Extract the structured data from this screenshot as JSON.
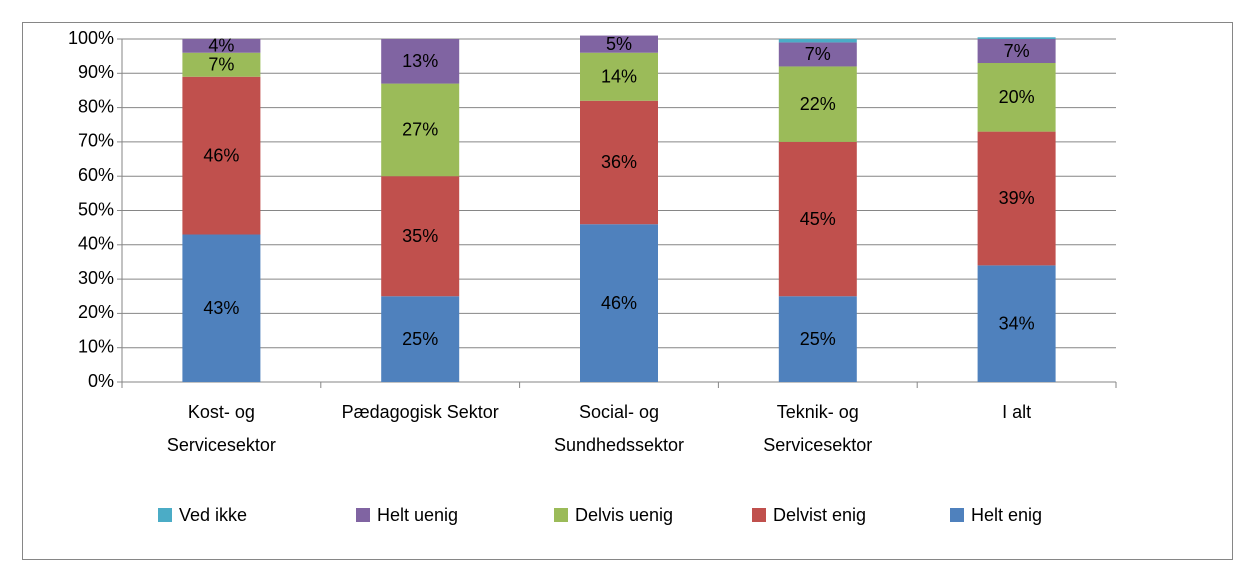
{
  "chart_data": {
    "type": "stacked_bar",
    "categories": [
      "Kost- og Servicesektor",
      "Pædagogisk Sektor",
      "Social- og Sundhedssektor",
      "Teknik- og Servicesektor",
      "I alt"
    ],
    "series": [
      {
        "name": "Helt enig",
        "color": "#4f81bd",
        "values": [
          43,
          25,
          46,
          25,
          34
        ],
        "value_labels": [
          "43%",
          "25%",
          "46%",
          "25%",
          "34%"
        ]
      },
      {
        "name": "Delvist enig",
        "color": "#c0504d",
        "values": [
          46,
          35,
          36,
          45,
          39
        ],
        "value_labels": [
          "46%",
          "35%",
          "36%",
          "45%",
          "39%"
        ]
      },
      {
        "name": "Delvis uenig",
        "color": "#9bbb59",
        "values": [
          7,
          27,
          14,
          22,
          20
        ],
        "value_labels": [
          "7%",
          "27%",
          "14%",
          "22%",
          "20%"
        ]
      },
      {
        "name": "Helt uenig",
        "color": "#8064a2",
        "values": [
          4,
          13,
          5,
          7,
          7
        ],
        "value_labels": [
          "4%",
          "13%",
          "5%",
          "7%",
          "7%"
        ]
      },
      {
        "name": "Ved ikke",
        "color": "#4bacc6",
        "values": [
          0,
          0,
          0,
          1,
          0.5
        ]
      }
    ],
    "ylim": [
      0,
      100
    ],
    "yticks": [
      {
        "value": 0,
        "label": "0%"
      },
      {
        "value": 10,
        "label": "10%"
      },
      {
        "value": 20,
        "label": "20%"
      },
      {
        "value": 30,
        "label": "30%"
      },
      {
        "value": 40,
        "label": "40%"
      },
      {
        "value": 50,
        "label": "50%"
      },
      {
        "value": 60,
        "label": "60%"
      },
      {
        "value": 70,
        "label": "70%"
      },
      {
        "value": 80,
        "label": "80%"
      },
      {
        "value": 90,
        "label": "90%"
      },
      {
        "value": 100,
        "label": "100%"
      }
    ],
    "grid": true,
    "legend": "bottom"
  }
}
